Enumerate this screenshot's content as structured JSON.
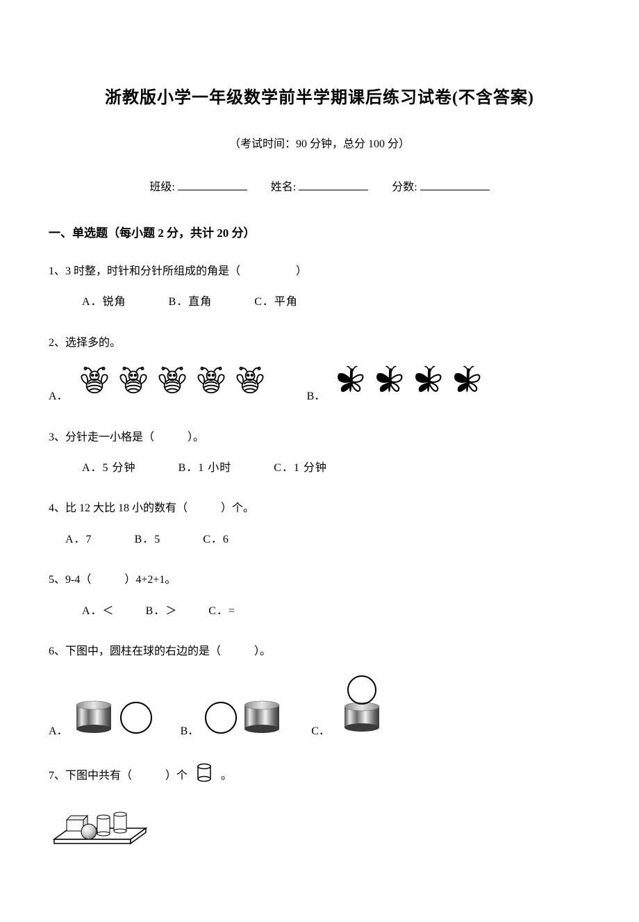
{
  "colors": {
    "text": "#000000",
    "bg": "#ffffff",
    "stroke": "#000000",
    "cyl_light": "#e6e6e6",
    "cyl_mid": "#b8b8b8",
    "cyl_dark": "#5a5a5a",
    "cyl_shine": "#f5f5f5",
    "ball_light": "#f8f8f8",
    "ball_mid": "#cfcfcf",
    "ball_dark": "#7a7a7a"
  },
  "title": "浙教版小学一年级数学前半学期课后练习试卷(不含答案)",
  "subtitle": "（考试时间：90 分钟，总分 100 分）",
  "info": {
    "class_label": "班级:",
    "name_label": "姓名:",
    "score_label": "分数:"
  },
  "section1": "一、单选题（每小题 2 分，共计 20 分）",
  "q1": {
    "stem": "1、3 时整，时针和分针所组成的角是（　　　　　）",
    "a": "A．锐角",
    "b": "B．直角",
    "c": "C．平角"
  },
  "q2": {
    "stem": "2、选择多的。",
    "a_label": "A．",
    "b_label": "B．",
    "a_count": 5,
    "b_count": 4
  },
  "q3": {
    "stem": "3、分针走一小格是（　　　）。",
    "a": "A．5 分钟",
    "b": "B．1 小时",
    "c": "C．1 分钟"
  },
  "q4": {
    "stem": "4、比 12 大比 18 小的数有（　　　）个。",
    "a": "A．7",
    "b": "B．5",
    "c": "C．6"
  },
  "q5": {
    "stem": "5、9-4（　　　）4+2+1。",
    "a": "A．＜",
    "b": "B．＞",
    "c": "C．="
  },
  "q6": {
    "stem": "6、下图中，圆柱在球的右边的是（　　　）。",
    "a_label": "A．",
    "b_label": "B．",
    "c_label": "C．"
  },
  "q7": {
    "stem_pre": "7、下图中共有（　　　）个",
    "stem_post": "。"
  }
}
